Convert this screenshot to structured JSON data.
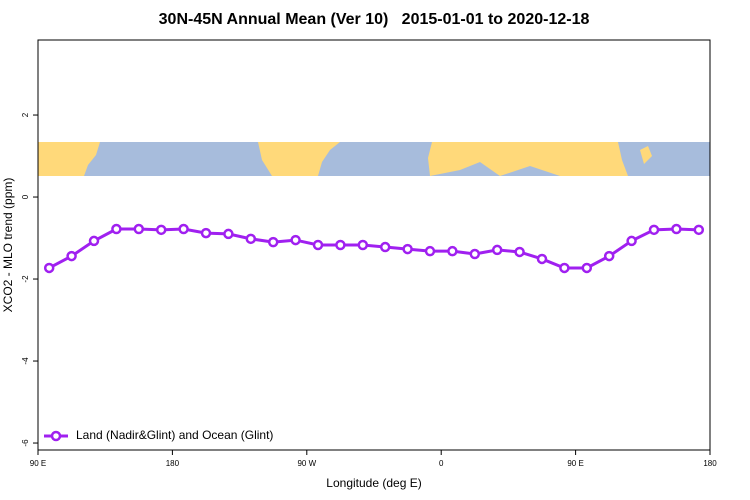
{
  "chart_data": {
    "type": "line",
    "title": "30N-45N Annual Mean (Ver 10)   2015-01-01 to 2020-12-18",
    "x_label": "Longitude (deg E)",
    "y_label": "XCO2 - MLO trend (ppm)",
    "x": [
      97.5,
      112.5,
      127.5,
      142.5,
      157.5,
      172.5,
      187.5,
      202.5,
      217.5,
      232.5,
      247.5,
      262.5,
      277.5,
      292.5,
      307.5,
      322.5,
      337.5,
      352.5,
      367.5,
      382.5,
      397.5,
      412.5,
      427.5,
      442.5,
      457.5,
      472.5,
      487.5,
      502.5,
      517.5,
      532.5
    ],
    "series": [
      {
        "name": "Land (Nadir&Glint) and Ocean (Glint)",
        "color": "#a020f0",
        "values": [
          -1.73,
          -1.44,
          -1.07,
          -0.78,
          -0.78,
          -0.8,
          -0.78,
          -0.88,
          -0.9,
          -1.02,
          -1.1,
          -1.05,
          -1.17,
          -1.17,
          -1.17,
          -1.22,
          -1.27,
          -1.32,
          -1.32,
          -1.39,
          -1.29,
          -1.34,
          -1.51,
          -1.73,
          -1.73,
          -1.44,
          -1.07,
          -0.8,
          -0.78,
          -0.8
        ]
      }
    ],
    "xlim": [
      90,
      540
    ],
    "xticks": [
      {
        "value": 90,
        "label": "90 E"
      },
      {
        "value": 180,
        "label": "180"
      },
      {
        "value": 270,
        "label": "90 W"
      },
      {
        "value": 360,
        "label": "0"
      },
      {
        "value": 450,
        "label": "90 E"
      },
      {
        "value": 540,
        "label": "180"
      }
    ],
    "ylim": [
      -6.17,
      3.83
    ],
    "yticks": [
      -6,
      -4,
      -2,
      0,
      2
    ],
    "legend": "bottom-left"
  }
}
